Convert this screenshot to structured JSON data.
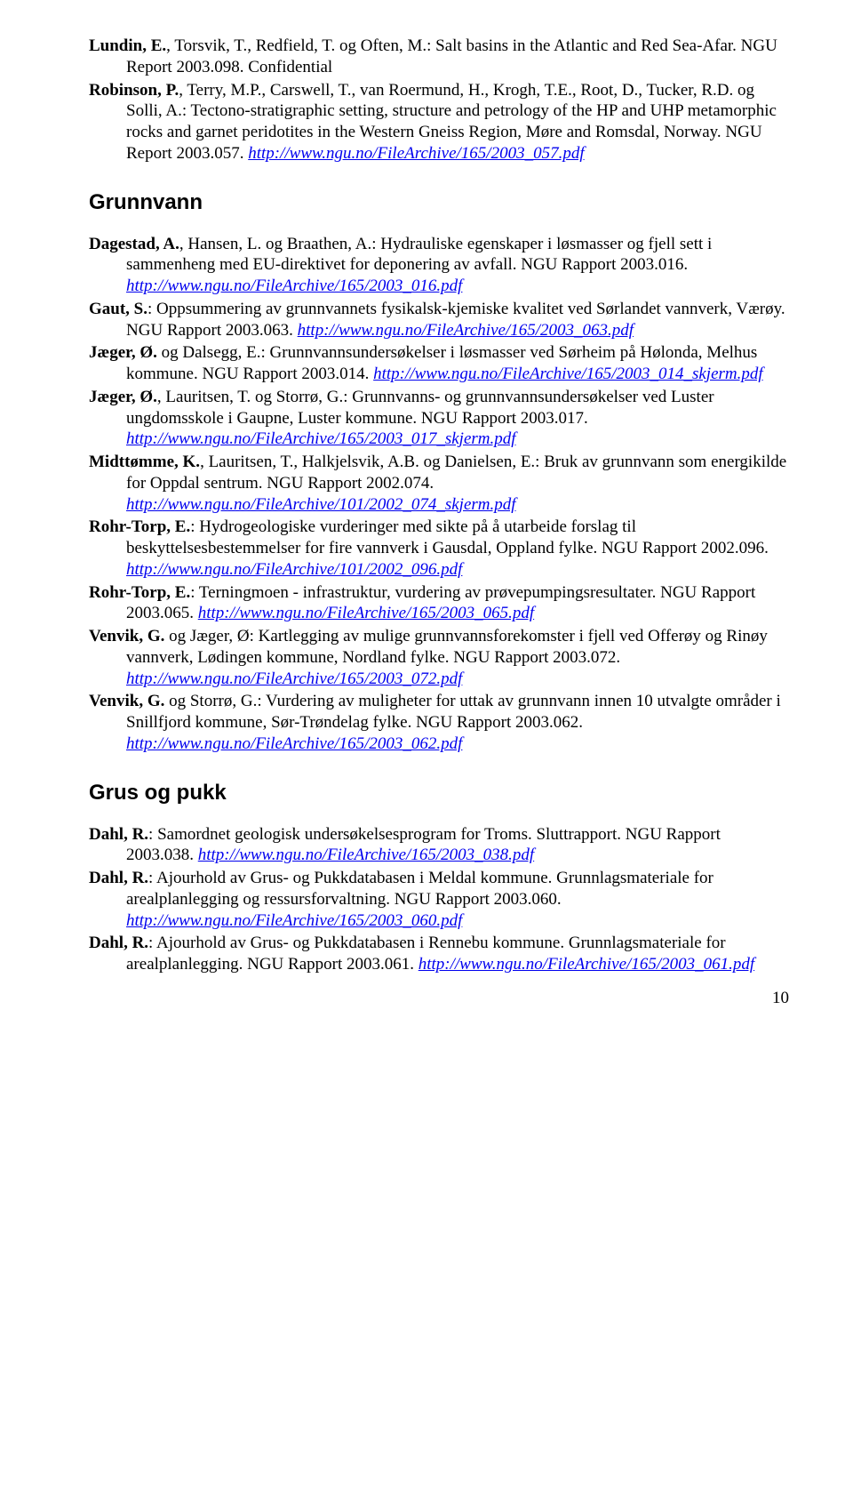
{
  "top_entries": [
    {
      "authors_bold": "Lundin, E.",
      "rest": ", Torsvik, T., Redfield, T. og Often, M.: Salt basins in the Atlantic and Red Sea-Afar. NGU Report 2003.098. Confidential"
    },
    {
      "authors_bold": "Robinson, P.",
      "rest": ", Terry, M.P., Carswell, T., van Roermund, H., Krogh, T.E., Root, D., Tucker, R.D. og Solli, A.: Tectono-stratigraphic setting, structure and petrology of the HP and UHP metamorphic rocks and garnet peridotites in the Western Gneiss Region, Møre and Romsdal, Norway. NGU Report 2003.057. ",
      "link_text": "http://www.ngu.no/FileArchive/165/2003_057.pdf"
    }
  ],
  "section1_heading": "Grunnvann",
  "section1_entries": [
    {
      "authors_bold": "Dagestad, A.",
      "rest": ", Hansen, L. og Braathen, A.: Hydrauliske egenskaper i løsmasser og fjell sett i sammenheng med EU-direktivet for deponering av avfall. NGU Rapport 2003.016. ",
      "link_text": "http://www.ngu.no/FileArchive/165/2003_016.pdf"
    },
    {
      "authors_bold": "Gaut, S.",
      "rest": ": Oppsummering av grunnvannets fysikalsk-kjemiske kvalitet ved Sørlandet vannverk, Værøy. NGU Rapport 2003.063. ",
      "link_text": "http://www.ngu.no/FileArchive/165/2003_063.pdf"
    },
    {
      "authors_bold": "Jæger, Ø.",
      "rest": " og Dalsegg, E.: Grunnvannsundersøkelser i løsmasser ved Sørheim på Hølonda, Melhus kommune. NGU Rapport 2003.014. ",
      "link_text": "http://www.ngu.no/FileArchive/165/2003_014_skjerm.pdf"
    },
    {
      "authors_bold": "Jæger, Ø.",
      "rest": ", Lauritsen, T. og Storrø, G.: Grunnvanns- og grunnvannsundersøkelser ved Luster ungdomsskole i Gaupne, Luster kommune. NGU Rapport 2003.017. ",
      "link_text": "http://www.ngu.no/FileArchive/165/2003_017_skjerm.pdf"
    },
    {
      "authors_bold": "Midttømme, K.",
      "rest": ", Lauritsen, T., Halkjelsvik, A.B. og Danielsen, E.: Bruk av grunnvann som energikilde for Oppdal sentrum. NGU Rapport 2002.074. ",
      "link_text": "http://www.ngu.no/FileArchive/101/2002_074_skjerm.pdf"
    },
    {
      "authors_bold": "Rohr-Torp, E.",
      "rest": ": Hydrogeologiske vurderinger med sikte på å utarbeide forslag til beskyttelsesbestemmelser for fire vannverk i Gausdal, Oppland fylke. NGU Rapport 2002.096. ",
      "link_text": "http://www.ngu.no/FileArchive/101/2002_096.pdf"
    },
    {
      "authors_bold": "Rohr-Torp, E.",
      "rest": ": Terningmoen - infrastruktur, vurdering av prøvepumpingsresultater. NGU Rapport 2003.065. ",
      "link_text": "http://www.ngu.no/FileArchive/165/2003_065.pdf"
    },
    {
      "authors_bold": "Venvik, G.",
      "rest": " og Jæger, Ø: Kartlegging av mulige grunnvannsforekomster i fjell ved Offerøy og Rinøy vannverk, Lødingen kommune, Nordland fylke. NGU Rapport 2003.072. ",
      "link_text": "http://www.ngu.no/FileArchive/165/2003_072.pdf"
    },
    {
      "authors_bold": "Venvik, G.",
      "rest": " og Storrø, G.: Vurdering av muligheter for uttak av grunnvann innen 10 utvalgte områder i Snillfjord kommune, Sør-Trøndelag fylke. NGU Rapport 2003.062. ",
      "link_text": "http://www.ngu.no/FileArchive/165/2003_062.pdf"
    }
  ],
  "section2_heading": "Grus og pukk",
  "section2_entries": [
    {
      "authors_bold": "Dahl, R.",
      "rest": ": Samordnet geologisk undersøkelsesprogram for Troms. Sluttrapport. NGU Rapport 2003.038. ",
      "link_text": "http://www.ngu.no/FileArchive/165/2003_038.pdf"
    },
    {
      "authors_bold": "Dahl, R.",
      "rest": ": Ajourhold av Grus- og Pukkdatabasen i Meldal kommune. Grunnlagsmateriale for arealplanlegging og ressursforvaltning. NGU Rapport 2003.060. ",
      "link_text": "http://www.ngu.no/FileArchive/165/2003_060.pdf"
    },
    {
      "authors_bold": "Dahl, R.",
      "rest": ": Ajourhold av Grus- og Pukkdatabasen i Rennebu kommune. Grunnlagsmateriale for arealplanlegging. NGU Rapport 2003.061. ",
      "link_text": "http://www.ngu.no/FileArchive/165/2003_061.pdf"
    }
  ],
  "page_number": "10"
}
